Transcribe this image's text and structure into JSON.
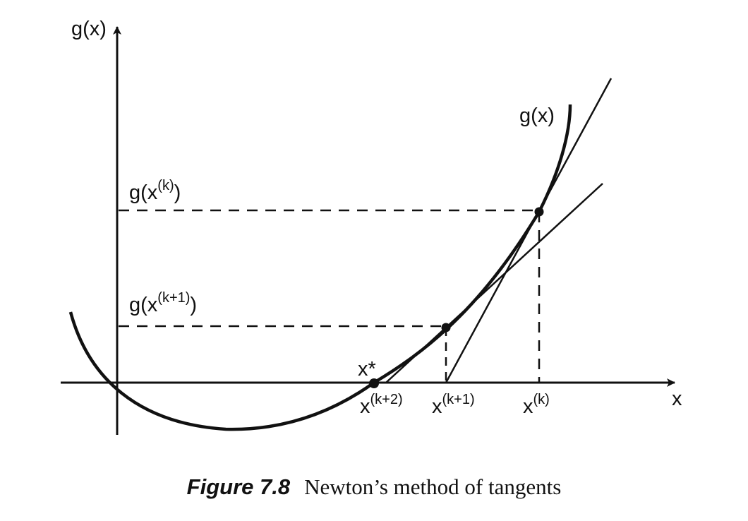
{
  "diagram": {
    "axis_labels": {
      "y": "g(x)",
      "x": "x"
    },
    "curve_label": "g(x)",
    "value_labels": {
      "gk": {
        "base": "g(x",
        "sup": "(k)",
        "close": ")"
      },
      "gk1": {
        "base": "g(x",
        "sup": "(k+1)",
        "close": ")"
      }
    },
    "root_label": "x*",
    "tick_labels": {
      "xk2": {
        "base": "x",
        "sup": "(k+2)"
      },
      "xk1": {
        "base": "x",
        "sup": "(k+1)"
      },
      "xk": {
        "base": "x",
        "sup": "(k)"
      }
    },
    "colors": {
      "ink": "#111111",
      "background": "#ffffff"
    }
  },
  "caption": {
    "label": "Figure 7.8",
    "text": "Newton’s method of tangents"
  }
}
